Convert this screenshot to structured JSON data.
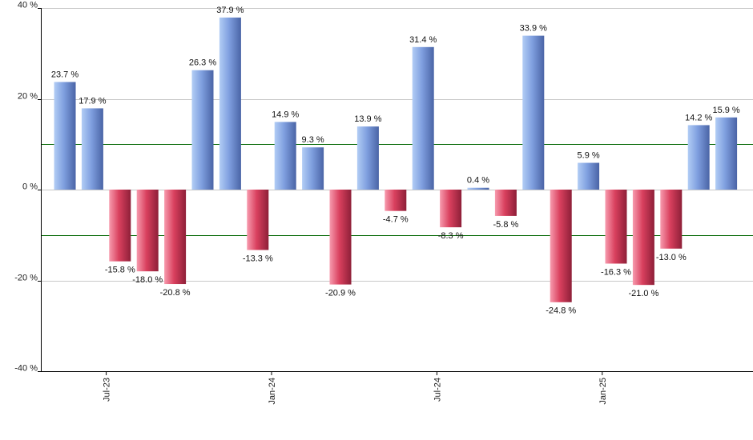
{
  "chart_data": {
    "type": "bar",
    "values": [
      23.7,
      17.9,
      -15.8,
      -18.0,
      -20.8,
      26.3,
      37.9,
      -13.3,
      14.9,
      9.3,
      -20.9,
      13.9,
      -4.7,
      31.4,
      -8.3,
      0.4,
      -5.8,
      33.9,
      -24.8,
      5.9,
      -16.3,
      -21.0,
      -13.0,
      14.2,
      15.9
    ],
    "data_labels": [
      "23.7 %",
      "17.9 %",
      "-15.8 %",
      "-18.0 %",
      "-20.8 %",
      "26.3 %",
      "37.9 %",
      "-13.3 %",
      "14.9 %",
      "9.3 %",
      "-20.9 %",
      "13.9 %",
      "-4.7 %",
      "31.4 %",
      "-8.3 %",
      "0.4 %",
      "-5.8 %",
      "33.9 %",
      "-24.8 %",
      "5.9 %",
      "-16.3 %",
      "-21.0 %",
      "-13.0 %",
      "14.2 %",
      "15.9 %"
    ],
    "ylim": [
      -40,
      40
    ],
    "y_ticks": [
      -40,
      -20,
      0,
      20,
      40
    ],
    "y_tick_labels": [
      "-40 %",
      "-20 %",
      "0 %",
      "20 %",
      "40 %"
    ],
    "x_tick_labels": [
      {
        "label": "Jul-23",
        "bar_index": 1.5
      },
      {
        "label": "Jan-24",
        "bar_index": 7.5
      },
      {
        "label": "Jul-24",
        "bar_index": 13.5
      },
      {
        "label": "Jan-25",
        "bar_index": 19.5
      }
    ],
    "reference_lines": [
      10,
      -10
    ],
    "grid": true,
    "title": "",
    "xlabel": "",
    "ylabel": "",
    "colors": {
      "positive": "#6b8fd6",
      "positive_light": "#a8c4f0",
      "negative": "#c2334f",
      "negative_light": "#f27f96",
      "reference_line": "#006600",
      "grid": "#c8c8c8",
      "axis": "#000000"
    }
  }
}
